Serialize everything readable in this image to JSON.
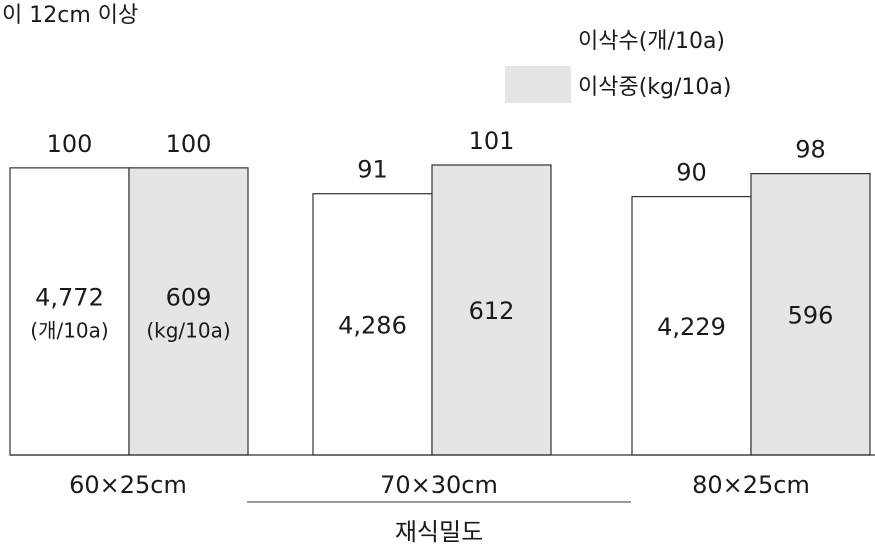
{
  "chart_data": {
    "type": "bar",
    "title": "이 12cm 이상",
    "xlabel": "재식밀도",
    "ylabel": "",
    "ylim": [
      0,
      101
    ],
    "legend": "top-right",
    "categories": [
      "60×25cm",
      "70×30cm",
      "80×25cm"
    ],
    "series": [
      {
        "name": "이삭수(개/10a)",
        "color": "#ffffff",
        "index_values": [
          100,
          91,
          90
        ],
        "values": [
          4772,
          4286,
          4229
        ],
        "inner_labels": [
          "4,772",
          "4,286",
          "4,229"
        ],
        "unit_label": "(개/10a)"
      },
      {
        "name": "이삭중(kg/10a)",
        "color": "#e5e5e5",
        "index_values": [
          100,
          101,
          98
        ],
        "values": [
          609,
          612,
          596
        ],
        "inner_labels": [
          "609",
          "612",
          "596"
        ],
        "unit_label": "(kg/10a)"
      }
    ]
  }
}
